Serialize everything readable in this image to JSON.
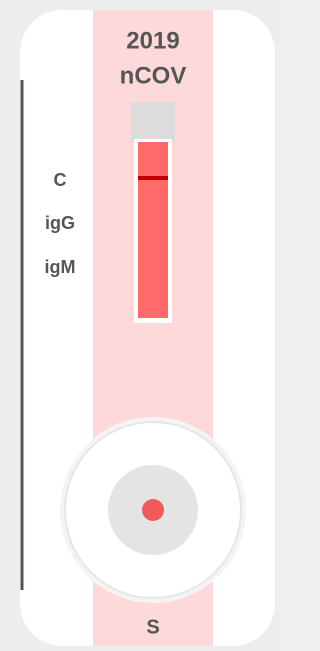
{
  "header": {
    "line1": "2019",
    "line2": "nCOV"
  },
  "labels": [
    "C",
    "igG",
    "igM"
  ],
  "sample_label": "S"
}
